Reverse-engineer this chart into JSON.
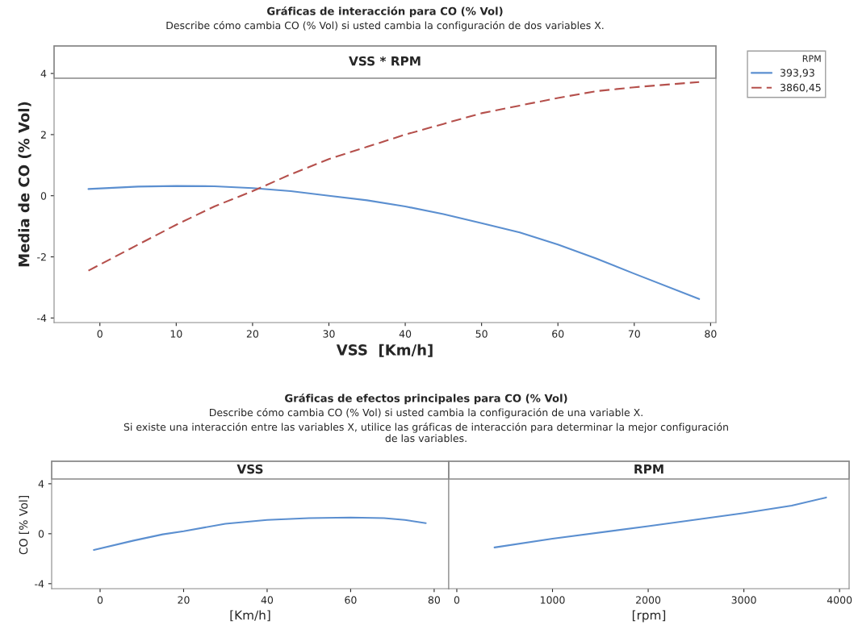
{
  "chart_data": [
    {
      "type": "line",
      "title": "VSS * RPM",
      "annotations": [
        "Gráficas de interacción para CO (% Vol)",
        "Describe cómo cambia CO (% Vol) si usted cambia la configuración de dos variables X."
      ],
      "xlabel": "VSS  [Km/h]",
      "ylabel": "Media de CO (% Vol)",
      "legend_title": "RPM",
      "legend": "right",
      "grid": false,
      "xlim": [
        -6,
        80.7
      ],
      "xticks": [
        0,
        10,
        20,
        30,
        40,
        50,
        60,
        70,
        80
      ],
      "ylim": [
        -4.15,
        4.9
      ],
      "yticks": [
        -4,
        -2,
        0,
        2,
        4
      ],
      "series": [
        {
          "name": "393,93",
          "color": "#5b8fd0",
          "line_style": "solid",
          "x": [
            -1.5,
            5,
            10,
            15,
            20,
            25,
            30,
            35,
            40,
            45,
            50,
            55,
            60,
            65,
            70,
            78.5
          ],
          "values": [
            0.22,
            0.3,
            0.32,
            0.31,
            0.25,
            0.15,
            0.0,
            -0.15,
            -0.35,
            -0.6,
            -0.9,
            -1.2,
            -1.6,
            -2.05,
            -2.55,
            -3.38
          ]
        },
        {
          "name": "3860,45",
          "color": "#b5504c",
          "line_style": "dashed",
          "x": [
            -1.5,
            5,
            10,
            15,
            20,
            25,
            30,
            35,
            40,
            45,
            50,
            55,
            60,
            65,
            70,
            78.5
          ],
          "values": [
            -2.45,
            -1.6,
            -0.95,
            -0.35,
            0.15,
            0.7,
            1.2,
            1.6,
            2.0,
            2.35,
            2.7,
            2.95,
            3.2,
            3.42,
            3.55,
            3.72
          ]
        }
      ]
    },
    {
      "type": "line",
      "title": "VSS",
      "annotations": [
        "Gráficas de efectos principales para CO (% Vol)",
        "Describe cómo cambia CO (% Vol) si usted cambia la configuración de una variable X.",
        "Si existe una interacción entre las variables X, utilice las gráficas de interacción para determinar la mejor configuración\nde las variables."
      ],
      "xlabel": "[Km/h]",
      "ylabel": "CO [% Vol]",
      "grid": false,
      "xlim": [
        -11.6,
        83.5
      ],
      "xticks": [
        0,
        20,
        40,
        60,
        80
      ],
      "ylim": [
        -4.4,
        5.8
      ],
      "yticks": [
        -4,
        0,
        4
      ],
      "series": [
        {
          "color": "#5b8fd0",
          "line_style": "solid",
          "x": [
            -1.5,
            8,
            15,
            20,
            30,
            40,
            50,
            60,
            68,
            73,
            78
          ],
          "values": [
            -1.3,
            -0.55,
            -0.05,
            0.2,
            0.8,
            1.1,
            1.25,
            1.3,
            1.25,
            1.1,
            0.85
          ]
        }
      ]
    },
    {
      "type": "line",
      "title": "RPM",
      "xlabel": "[rpm]",
      "grid": false,
      "tick_labels": "x",
      "xlim": [
        -84,
        4100
      ],
      "xticks": [
        0,
        1000,
        2000,
        3000,
        4000
      ],
      "ylim": [
        -4.4,
        5.8
      ],
      "yticks": [
        -4,
        0,
        4
      ],
      "series": [
        {
          "color": "#5b8fd0",
          "line_style": "solid",
          "x": [
            394,
            1000,
            2000,
            3000,
            3500,
            3860
          ],
          "values": [
            -1.1,
            -0.4,
            0.6,
            1.65,
            2.25,
            2.9
          ]
        }
      ]
    }
  ]
}
